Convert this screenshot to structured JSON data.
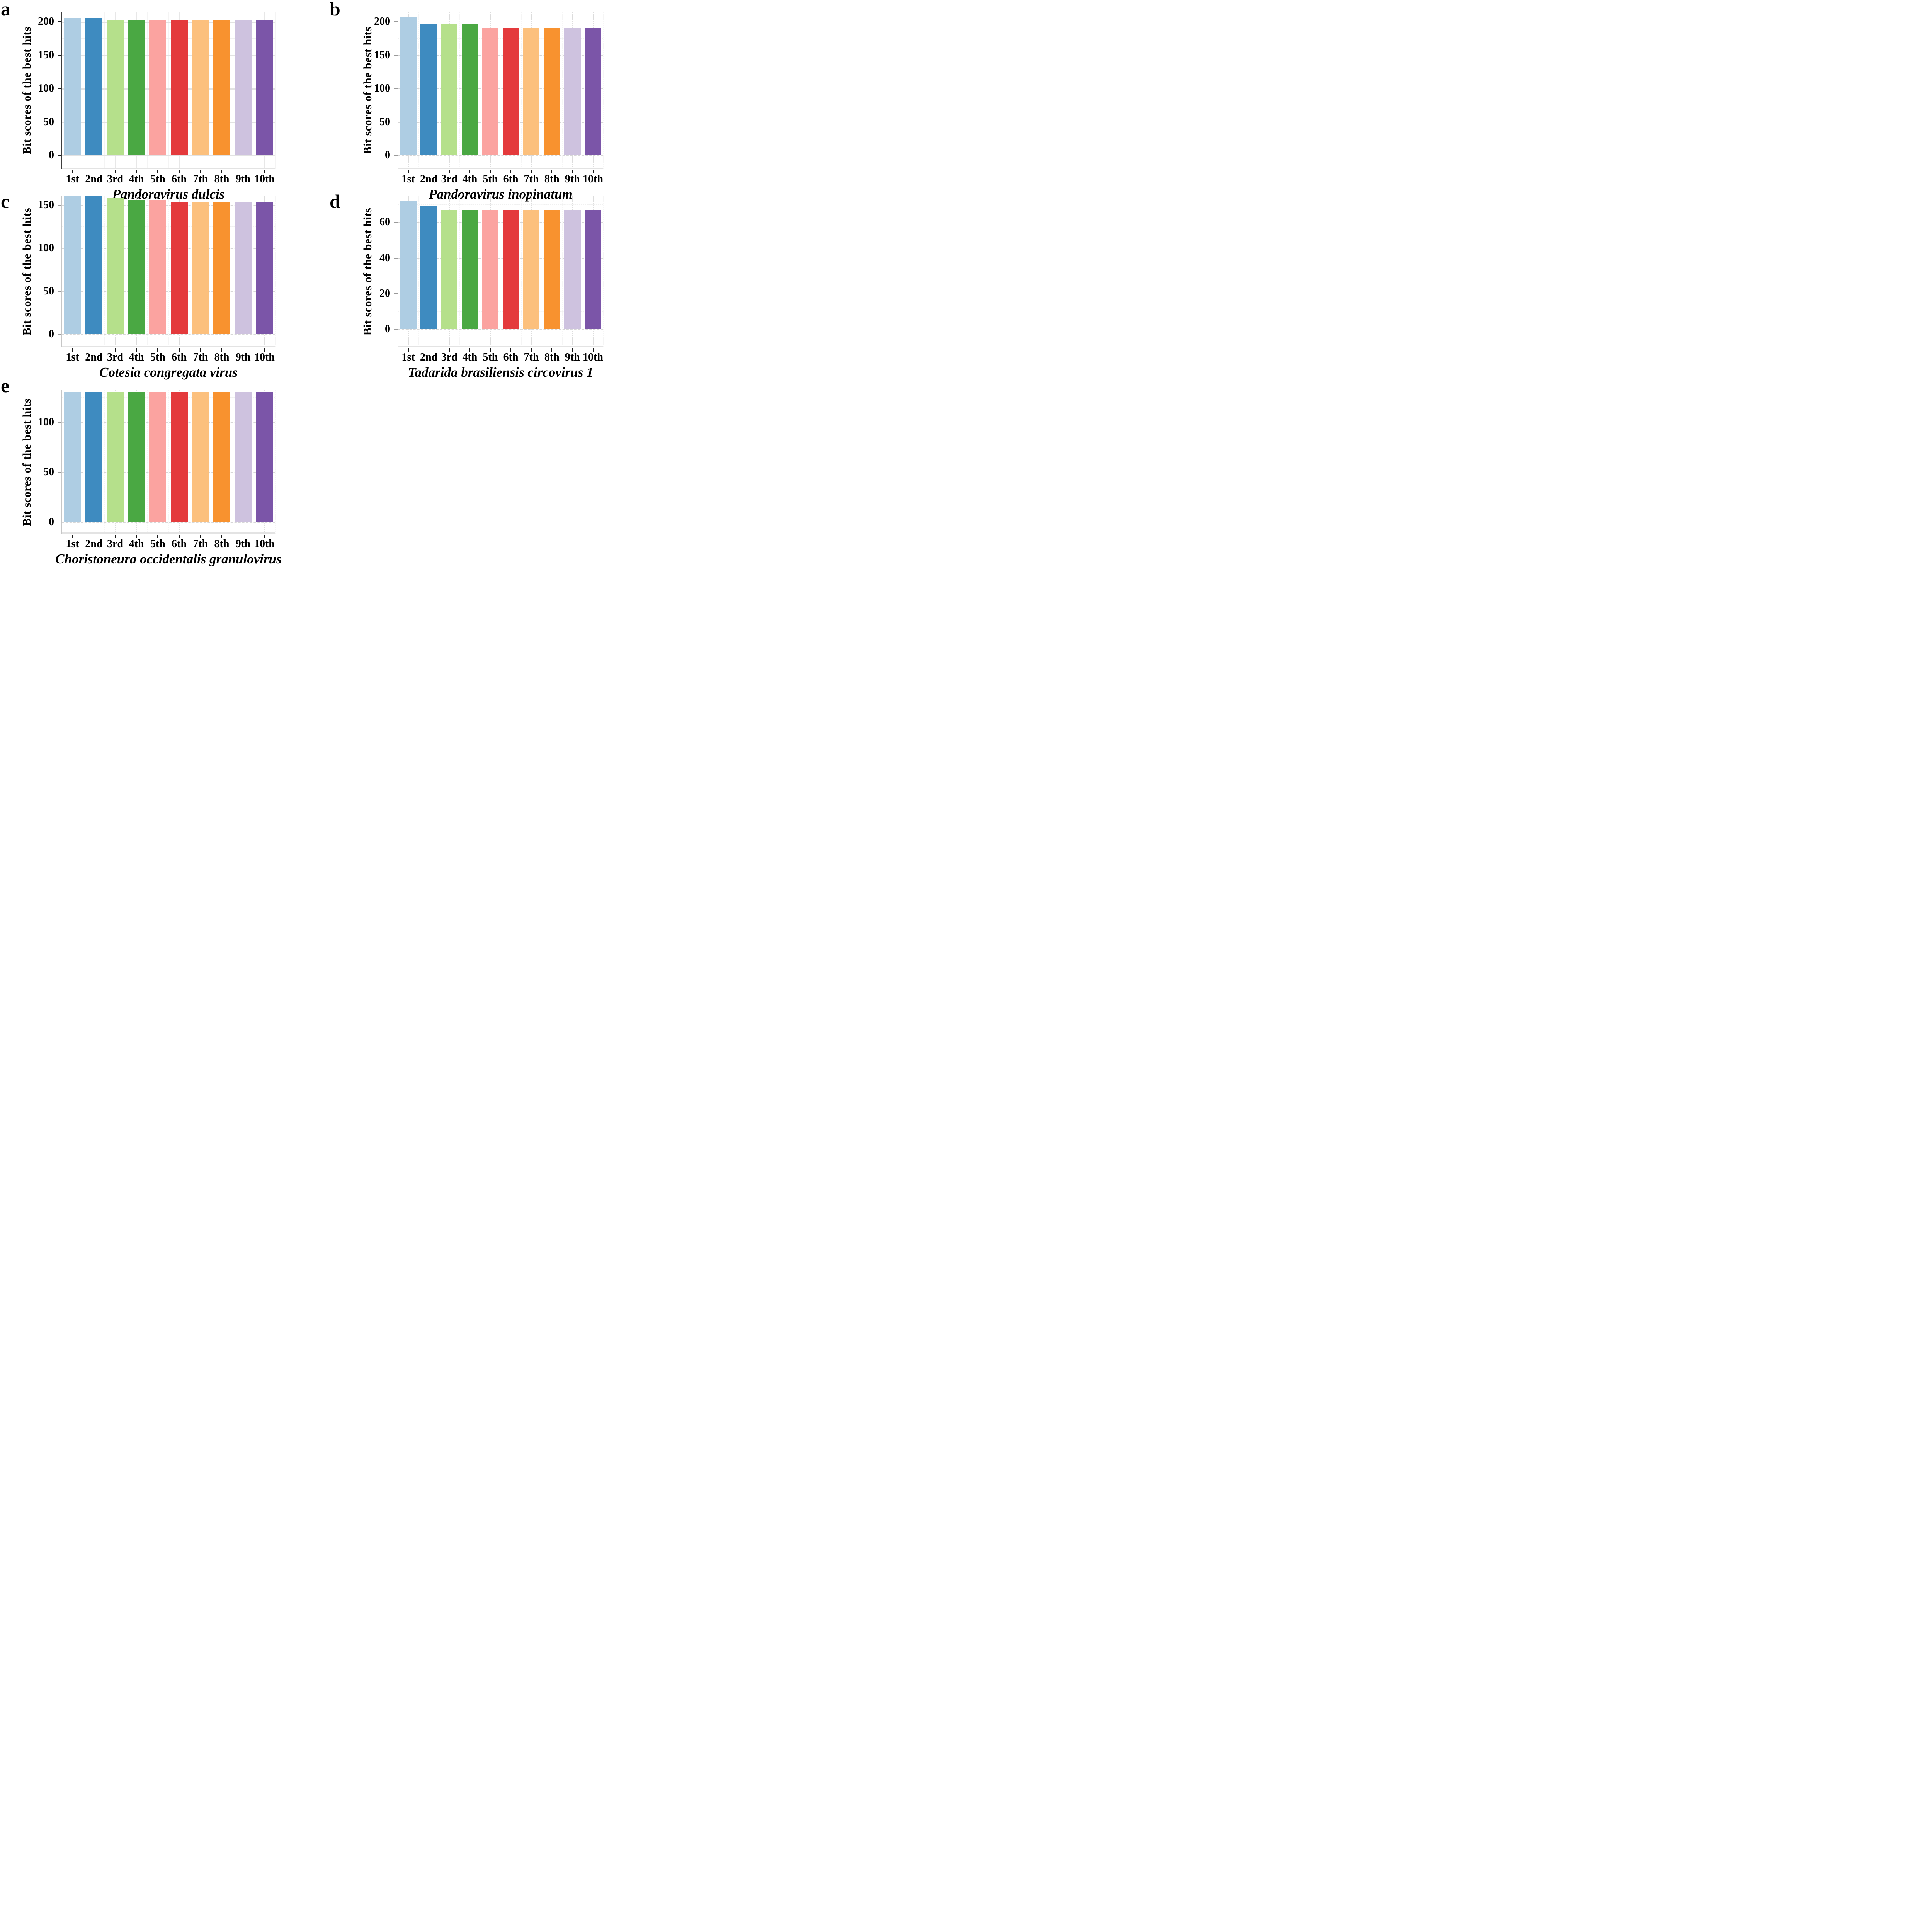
{
  "figure": {
    "ylabel": "Bit scores of the best hits",
    "categories": [
      "1st",
      "2nd",
      "3rd",
      "4th",
      "5th",
      "6th",
      "7th",
      "8th",
      "9th",
      "10th"
    ],
    "bar_colors": [
      "#aecde3",
      "#3e8bc0",
      "#b5e08b",
      "#4aa843",
      "#fba3a0",
      "#e43a3c",
      "#fcc07d",
      "#f8922f",
      "#cec2df",
      "#7b55a8"
    ],
    "panel_letters": [
      "a",
      "b",
      "c",
      "d",
      "e"
    ]
  },
  "chart_data": [
    {
      "type": "bar",
      "panel_letter": "a",
      "title": "Pandoravirus dulcis",
      "ylabel": "Bit scores of the best hits",
      "xlabel": "",
      "categories": [
        "1st",
        "2nd",
        "3rd",
        "4th",
        "5th",
        "6th",
        "7th",
        "8th",
        "9th",
        "10th"
      ],
      "values": [
        206,
        206,
        203,
        203,
        203,
        203,
        203,
        203,
        203,
        203
      ],
      "yticks": [
        0,
        50,
        100,
        150,
        200
      ],
      "ylim": [
        0,
        215
      ],
      "grid": "solid",
      "legend": "none"
    },
    {
      "type": "bar",
      "panel_letter": "b",
      "title": "Pandoravirus inopinatum",
      "ylabel": "Bit scores of the best hits",
      "xlabel": "",
      "categories": [
        "1st",
        "2nd",
        "3rd",
        "4th",
        "5th",
        "6th",
        "7th",
        "8th",
        "9th",
        "10th"
      ],
      "values": [
        207,
        196,
        196,
        196,
        191,
        191,
        191,
        191,
        191,
        191
      ],
      "yticks": [
        0,
        50,
        100,
        150,
        200
      ],
      "ylim": [
        0,
        215
      ],
      "grid": "dashed",
      "legend": "none"
    },
    {
      "type": "bar",
      "panel_letter": "c",
      "title": "Cotesia congregata virus",
      "ylabel": "Bit scores of the best hits",
      "xlabel": "",
      "categories": [
        "1st",
        "2nd",
        "3rd",
        "4th",
        "5th",
        "6th",
        "7th",
        "8th",
        "9th",
        "10th"
      ],
      "values": [
        160,
        160,
        158,
        156,
        156,
        154,
        154,
        154,
        154,
        154
      ],
      "yticks": [
        0,
        50,
        100,
        150
      ],
      "ylim": [
        0,
        161
      ],
      "grid": "dashed",
      "legend": "none"
    },
    {
      "type": "bar",
      "panel_letter": "d",
      "title": "Tadarida brasiliensis circovirus 1",
      "ylabel": "Bit scores of the best hits",
      "xlabel": "",
      "categories": [
        "1st",
        "2nd",
        "3rd",
        "4th",
        "5th",
        "6th",
        "7th",
        "8th",
        "9th",
        "10th"
      ],
      "values": [
        72,
        69,
        67,
        67,
        67,
        67,
        67,
        67,
        67,
        67
      ],
      "yticks": [
        0,
        20,
        40,
        60
      ],
      "ylim": [
        0,
        75
      ],
      "grid": "dashed",
      "legend": "none"
    },
    {
      "type": "bar",
      "panel_letter": "e",
      "title": "Choristoneura occidentalis granulovirus",
      "ylabel": "Bit scores of the best hits",
      "xlabel": "",
      "categories": [
        "1st",
        "2nd",
        "3rd",
        "4th",
        "5th",
        "6th",
        "7th",
        "8th",
        "9th",
        "10th"
      ],
      "values": [
        130,
        130,
        130,
        130,
        130,
        130,
        130,
        130,
        130,
        130
      ],
      "yticks": [
        0,
        50,
        100
      ],
      "ylim": [
        0,
        132
      ],
      "grid": "dashed",
      "legend": "none"
    }
  ]
}
